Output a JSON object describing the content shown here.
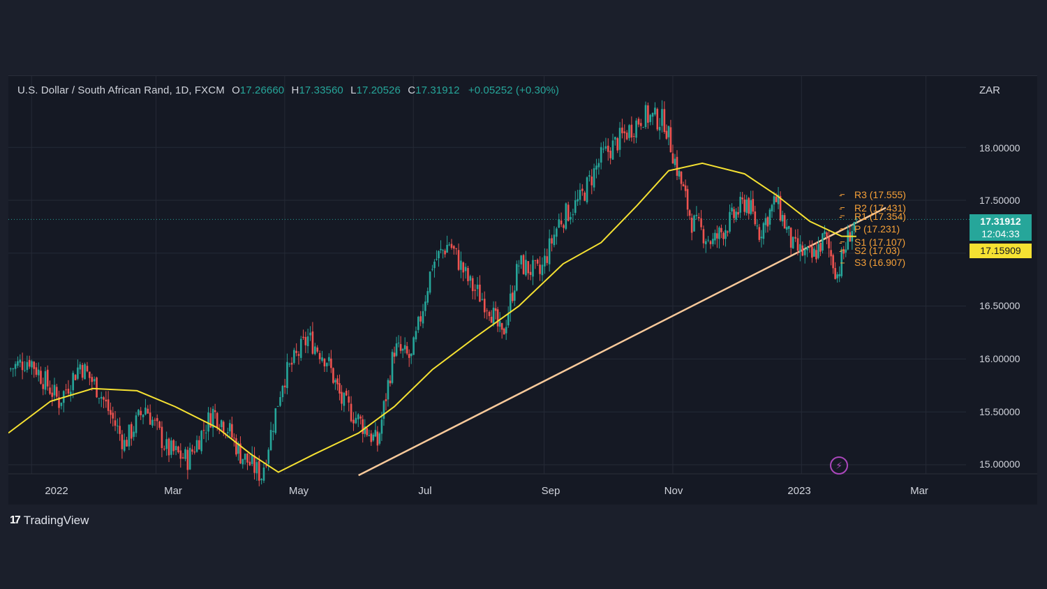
{
  "header": {
    "symbol": "U.S. Dollar / South African Rand, 1D, FXCM",
    "open_label": "O",
    "open": "17.26660",
    "high_label": "H",
    "high": "17.33560",
    "low_label": "L",
    "low": "17.20526",
    "close_label": "C",
    "close": "17.31912",
    "change": "+0.05252 (+0.30%)"
  },
  "currency_label": "ZAR",
  "price_tag": {
    "price": "17.31912",
    "countdown": "12:04:33"
  },
  "ma_tag": "17.15909",
  "pivots": [
    {
      "label": "R3 (17.555)",
      "value": 17.555
    },
    {
      "label": "R2 (17.431)",
      "value": 17.431
    },
    {
      "label": "R1 (17.354)",
      "value": 17.354
    },
    {
      "label": "P (17.231)",
      "value": 17.231
    },
    {
      "label": "S1 (17.107)",
      "value": 17.107
    },
    {
      "label": "S2 (17.03)",
      "value": 17.03
    },
    {
      "label": "S3 (16.907)",
      "value": 16.907
    }
  ],
  "brand": {
    "logo": "17",
    "name": "TradingView"
  },
  "colors": {
    "up": "#26a69a",
    "down": "#ef5350",
    "ma": "#f5e132",
    "trendline": "#f8c99a",
    "pivot": "#f7a138",
    "background": "#151924"
  },
  "chart_data": {
    "type": "candlestick",
    "title": "U.S. Dollar / South African Rand, 1D, FXCM",
    "ylim": [
      14.85,
      18.5
    ],
    "y_ticks": [
      "18.00000",
      "17.50000",
      "17.00000",
      "16.50000",
      "16.00000",
      "15.50000",
      "15.00000"
    ],
    "x_ticks": [
      "2022",
      "Mar",
      "May",
      "Jul",
      "Sep",
      "Nov",
      "2023",
      "Mar"
    ],
    "last_price": 17.31912,
    "moving_average_last": 17.15909,
    "close_path": [
      {
        "date": "2021-12-21",
        "close": 15.9
      },
      {
        "date": "2021-12-31",
        "close": 16.0
      },
      {
        "date": "2022-01-14",
        "close": 15.6
      },
      {
        "date": "2022-01-24",
        "close": 15.95
      },
      {
        "date": "2022-02-02",
        "close": 15.7
      },
      {
        "date": "2022-02-14",
        "close": 15.2
      },
      {
        "date": "2022-02-24",
        "close": 15.55
      },
      {
        "date": "2022-03-06",
        "close": 15.15
      },
      {
        "date": "2022-03-16",
        "close": 15.05
      },
      {
        "date": "2022-03-28",
        "close": 15.5
      },
      {
        "date": "2022-04-04",
        "close": 15.35
      },
      {
        "date": "2022-04-10",
        "close": 15.1
      },
      {
        "date": "2022-04-20",
        "close": 14.9
      },
      {
        "date": "2022-04-30",
        "close": 15.8
      },
      {
        "date": "2022-05-12",
        "close": 16.2
      },
      {
        "date": "2022-05-21",
        "close": 16.0
      },
      {
        "date": "2022-05-28",
        "close": 15.6
      },
      {
        "date": "2022-06-06",
        "close": 15.4
      },
      {
        "date": "2022-06-14",
        "close": 15.2
      },
      {
        "date": "2022-06-22",
        "close": 16.1
      },
      {
        "date": "2022-06-30",
        "close": 16.0
      },
      {
        "date": "2022-07-10",
        "close": 16.9
      },
      {
        "date": "2022-07-18",
        "close": 17.1
      },
      {
        "date": "2022-07-28",
        "close": 16.7
      },
      {
        "date": "2022-08-06",
        "close": 16.5
      },
      {
        "date": "2022-08-12",
        "close": 16.2
      },
      {
        "date": "2022-08-20",
        "close": 16.9
      },
      {
        "date": "2022-08-30",
        "close": 16.8
      },
      {
        "date": "2022-09-08",
        "close": 17.3
      },
      {
        "date": "2022-09-18",
        "close": 17.5
      },
      {
        "date": "2022-09-28",
        "close": 17.9
      },
      {
        "date": "2022-10-08",
        "close": 18.1
      },
      {
        "date": "2022-10-18",
        "close": 18.3
      },
      {
        "date": "2022-10-28",
        "close": 18.25
      },
      {
        "date": "2022-11-03",
        "close": 17.8
      },
      {
        "date": "2022-11-10",
        "close": 17.3
      },
      {
        "date": "2022-11-20",
        "close": 17.1
      },
      {
        "date": "2022-11-28",
        "close": 17.3
      },
      {
        "date": "2022-12-06",
        "close": 17.5
      },
      {
        "date": "2022-12-12",
        "close": 17.2
      },
      {
        "date": "2022-12-20",
        "close": 17.5
      },
      {
        "date": "2022-12-28",
        "close": 17.05
      },
      {
        "date": "2023-01-06",
        "close": 16.95
      },
      {
        "date": "2023-01-12",
        "close": 17.15
      },
      {
        "date": "2023-01-18",
        "close": 16.8
      },
      {
        "date": "2023-01-24",
        "close": 17.2
      },
      {
        "date": "2023-01-27",
        "close": 17.31912
      }
    ],
    "moving_average": [
      {
        "date": "2021-12-21",
        "value": 15.3
      },
      {
        "date": "2022-01-10",
        "value": 15.6
      },
      {
        "date": "2022-01-30",
        "value": 15.72
      },
      {
        "date": "2022-02-20",
        "value": 15.7
      },
      {
        "date": "2022-03-10",
        "value": 15.55
      },
      {
        "date": "2022-03-30",
        "value": 15.35
      },
      {
        "date": "2022-04-15",
        "value": 15.1
      },
      {
        "date": "2022-04-28",
        "value": 14.93
      },
      {
        "date": "2022-05-15",
        "value": 15.1
      },
      {
        "date": "2022-06-05",
        "value": 15.3
      },
      {
        "date": "2022-06-22",
        "value": 15.55
      },
      {
        "date": "2022-07-10",
        "value": 15.9
      },
      {
        "date": "2022-07-30",
        "value": 16.2
      },
      {
        "date": "2022-08-20",
        "value": 16.5
      },
      {
        "date": "2022-09-10",
        "value": 16.9
      },
      {
        "date": "2022-09-28",
        "value": 17.1
      },
      {
        "date": "2022-10-15",
        "value": 17.45
      },
      {
        "date": "2022-10-30",
        "value": 17.78
      },
      {
        "date": "2022-11-15",
        "value": 17.85
      },
      {
        "date": "2022-12-05",
        "value": 17.75
      },
      {
        "date": "2022-12-20",
        "value": 17.55
      },
      {
        "date": "2023-01-05",
        "value": 17.3
      },
      {
        "date": "2023-01-20",
        "value": 17.16
      },
      {
        "date": "2023-01-27",
        "value": 17.15909
      }
    ],
    "trendline": [
      {
        "date": "2022-06-05",
        "value": 14.9
      },
      {
        "date": "2023-02-10",
        "value": 17.43
      }
    ]
  }
}
